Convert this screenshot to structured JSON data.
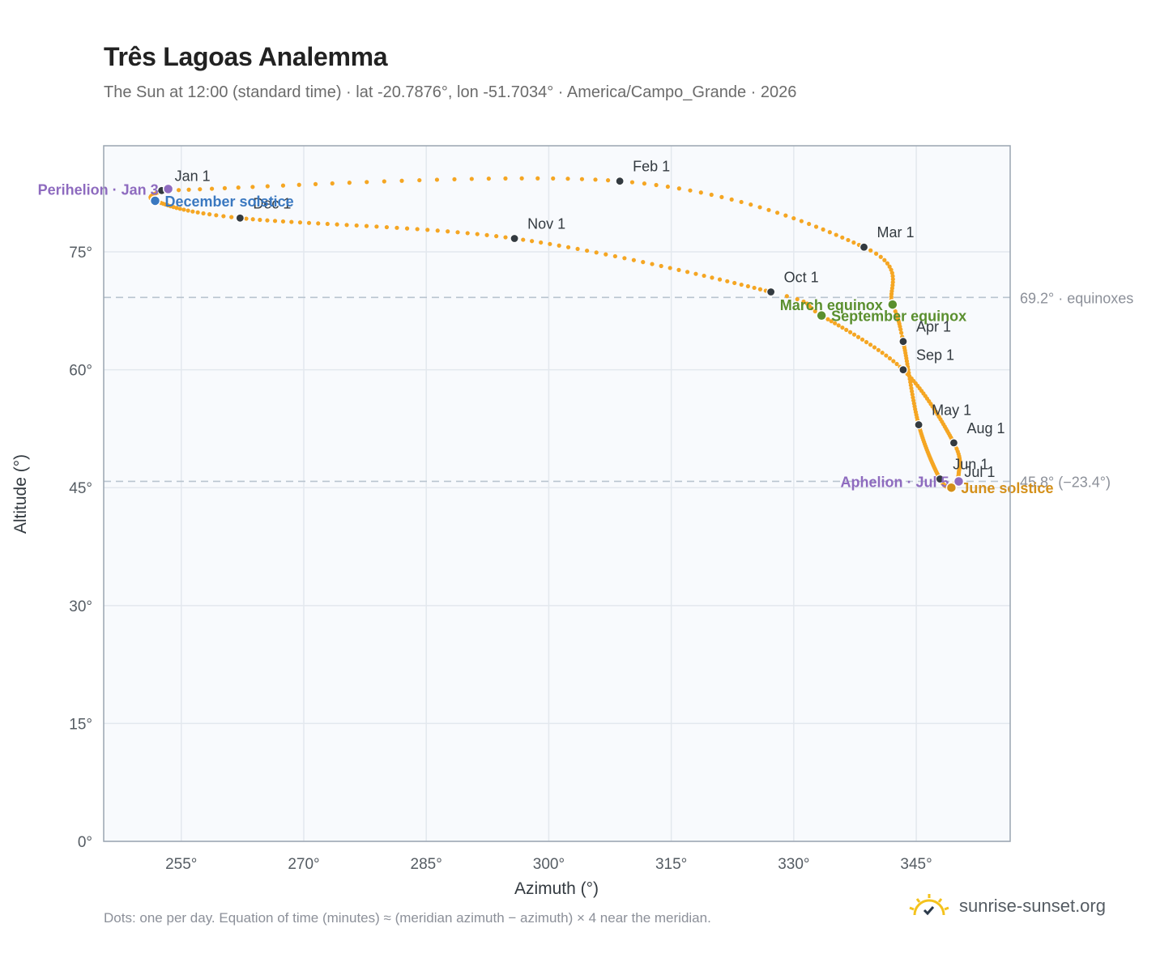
{
  "title": "Três Lagoas Analemma",
  "subtitle": "The Sun at 12:00 (standard time) · lat -20.7876°, lon -51.7034° · America/Campo_Grande · 2026",
  "footnote": "Dots: one per day. Equation of time (minutes) ≈ (meridian azimuth − azimuth) × 4 near the meridian.",
  "brand": {
    "name": "sunrise-sunset.org",
    "icon": "sun-logo-icon"
  },
  "colors": {
    "curve": "#f5a623",
    "month_marker": "#333a40",
    "perihelion_aphelion": "#8e6bbf",
    "december_solstice": "#3a78c0",
    "equinox": "#5a8f2e",
    "june_solstice": "#d4901a",
    "plot_bg": "#f8fafd",
    "grid": "#e3e8ee",
    "axis": "#9aa5b1",
    "ref_line": "#b9c4cf"
  },
  "chart_data": {
    "type": "scatter",
    "xlabel": "Azimuth (°)",
    "ylabel": "Altitude (°)",
    "xlim": [
      245.5,
      356.5
    ],
    "ylim": [
      0,
      88.5
    ],
    "xticks": [
      255,
      270,
      285,
      300,
      315,
      330,
      345
    ],
    "xtick_labels": [
      "255°",
      "270°",
      "285°",
      "300°",
      "315°",
      "330°",
      "345°"
    ],
    "yticks": [
      0,
      15,
      30,
      45,
      60,
      75
    ],
    "ytick_labels": [
      "0°",
      "15°",
      "30°",
      "45°",
      "60°",
      "75°"
    ],
    "grid": true,
    "reference_lines": [
      {
        "y": 69.2,
        "label": "69.2° · equinoxes"
      },
      {
        "y": 45.8,
        "label": "45.8° (−23.4°)"
      }
    ],
    "month_markers": [
      {
        "label": "Jan 1",
        "az": 252.6,
        "alt": 82.8
      },
      {
        "label": "Feb 1",
        "az": 308.7,
        "alt": 84.0
      },
      {
        "label": "Mar 1",
        "az": 338.6,
        "alt": 75.6
      },
      {
        "label": "Apr 1",
        "az": 343.4,
        "alt": 63.6
      },
      {
        "label": "May 1",
        "az": 345.3,
        "alt": 53.0
      },
      {
        "label": "Jun 1",
        "az": 347.9,
        "alt": 46.1
      },
      {
        "label": "Jul 1",
        "az": 349.3,
        "alt": 45.1
      },
      {
        "label": "Aug 1",
        "az": 349.6,
        "alt": 50.7
      },
      {
        "label": "Sep 1",
        "az": 343.4,
        "alt": 60.0
      },
      {
        "label": "Oct 1",
        "az": 327.2,
        "alt": 69.9
      },
      {
        "label": "Nov 1",
        "az": 295.8,
        "alt": 76.7
      },
      {
        "label": "Dec 1",
        "az": 262.2,
        "alt": 79.3
      }
    ],
    "events": [
      {
        "label": "Perihelion · Jan 3",
        "az": 253.4,
        "alt": 83.0,
        "kind": "perihelion_aphelion"
      },
      {
        "label": "December solstice",
        "az": 251.8,
        "alt": 81.5,
        "kind": "december_solstice"
      },
      {
        "label": "March equinox",
        "az": 342.1,
        "alt": 68.3,
        "kind": "equinox"
      },
      {
        "label": "September equinox",
        "az": 333.4,
        "alt": 66.9,
        "kind": "equinox"
      },
      {
        "label": "Aphelion · Jul 5",
        "az": 350.2,
        "alt": 45.8,
        "kind": "perihelion_aphelion"
      },
      {
        "label": "June solstice",
        "az": 349.3,
        "alt": 45.0,
        "kind": "june_solstice"
      }
    ],
    "curve_path": [
      {
        "day": 1,
        "az": 252.6,
        "alt": 82.8
      },
      {
        "day": 32,
        "az": 308.7,
        "alt": 84.0
      },
      {
        "day": 60,
        "az": 338.6,
        "alt": 75.6
      },
      {
        "day": 79,
        "az": 342.1,
        "alt": 68.3
      },
      {
        "day": 91,
        "az": 343.4,
        "alt": 63.6
      },
      {
        "day": 121,
        "az": 345.3,
        "alt": 53.0
      },
      {
        "day": 152,
        "az": 347.9,
        "alt": 46.1
      },
      {
        "day": 172,
        "az": 349.3,
        "alt": 45.0
      },
      {
        "day": 182,
        "az": 349.3,
        "alt": 45.1
      },
      {
        "day": 197,
        "az": 350.2,
        "alt": 46.8
      },
      {
        "day": 213,
        "az": 349.6,
        "alt": 50.7
      },
      {
        "day": 244,
        "az": 343.4,
        "alt": 60.0
      },
      {
        "day": 266,
        "az": 333.4,
        "alt": 66.9
      },
      {
        "day": 274,
        "az": 327.2,
        "alt": 69.9
      },
      {
        "day": 305,
        "az": 295.8,
        "alt": 76.7
      },
      {
        "day": 335,
        "az": 262.2,
        "alt": 79.3
      },
      {
        "day": 355,
        "az": 251.8,
        "alt": 81.5
      },
      {
        "day": 366,
        "az": 252.6,
        "alt": 82.8
      }
    ]
  }
}
